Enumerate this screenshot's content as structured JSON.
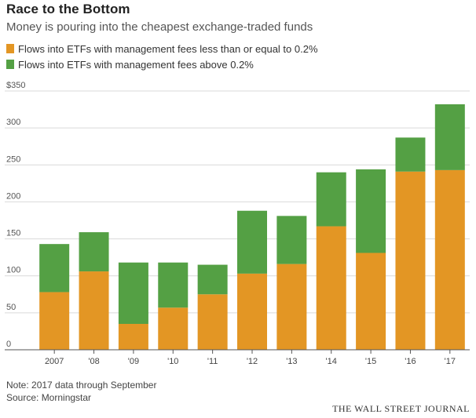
{
  "header": {
    "title": "Race to the Bottom",
    "subtitle": "Money is pouring into the cheapest exchange-traded funds"
  },
  "chart_data": {
    "type": "bar",
    "stacked": true,
    "categories": [
      "2007",
      "'08",
      "'09",
      "'10",
      "'11",
      "'12",
      "'13",
      "'14",
      "'15",
      "'16",
      "'17"
    ],
    "series": [
      {
        "name": "Flows into ETFs with management fees less than or equal to 0.2%",
        "color": "#e39624",
        "values": [
          78,
          106,
          35,
          57,
          75,
          103,
          116,
          167,
          131,
          241,
          243
        ]
      },
      {
        "name": "Flows into ETFs with management fees above 0.2%",
        "color": "#54a044",
        "values": [
          65,
          53,
          83,
          61,
          40,
          85,
          65,
          73,
          113,
          46,
          89
        ]
      }
    ],
    "y_ticks": [
      "$350",
      "300",
      "250",
      "200",
      "150",
      "100",
      "50",
      "0"
    ],
    "ylim": [
      0,
      350
    ],
    "grid": true,
    "legend_position": "top-left"
  },
  "footer": {
    "note": "Note: 2017 data through September",
    "source": "Source: Morningstar",
    "publisher": "THE WALL STREET JOURNAL"
  }
}
